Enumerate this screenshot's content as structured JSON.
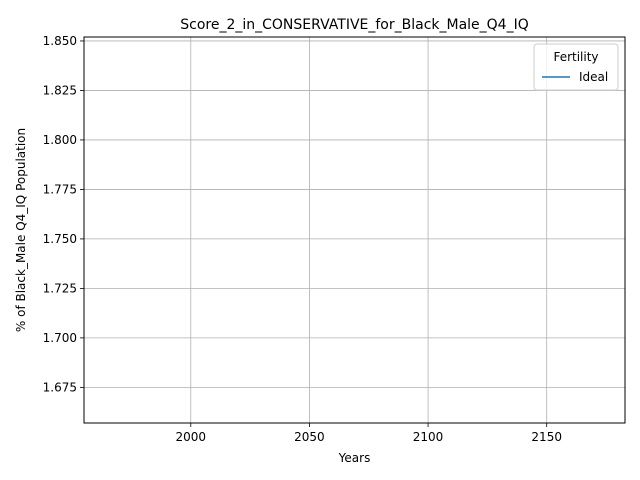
{
  "chart_data": {
    "type": "line",
    "title": "Score_2_in_CONSERVATIVE_for_Black_Male_Q4_IQ",
    "xlabel": "Years",
    "ylabel": "% of Black_Male Q4_IQ Population",
    "xlim": [
      1955,
      2183
    ],
    "ylim": [
      1.657,
      1.852
    ],
    "xticks": [
      2000,
      2050,
      2100,
      2150
    ],
    "xtick_labels": [
      "2000",
      "2050",
      "2100",
      "2150"
    ],
    "yticks": [
      1.675,
      1.7,
      1.725,
      1.75,
      1.775,
      1.8,
      1.825,
      1.85
    ],
    "ytick_labels": [
      "1.675",
      "1.700",
      "1.725",
      "1.750",
      "1.775",
      "1.800",
      "1.825",
      "1.850"
    ],
    "grid": true,
    "legend": {
      "title": "Fertility",
      "placement": "top-right",
      "entries": [
        "Ideal"
      ]
    },
    "series": [
      {
        "name": "Ideal",
        "color": "#1f77b4",
        "x": [],
        "y": []
      }
    ]
  }
}
